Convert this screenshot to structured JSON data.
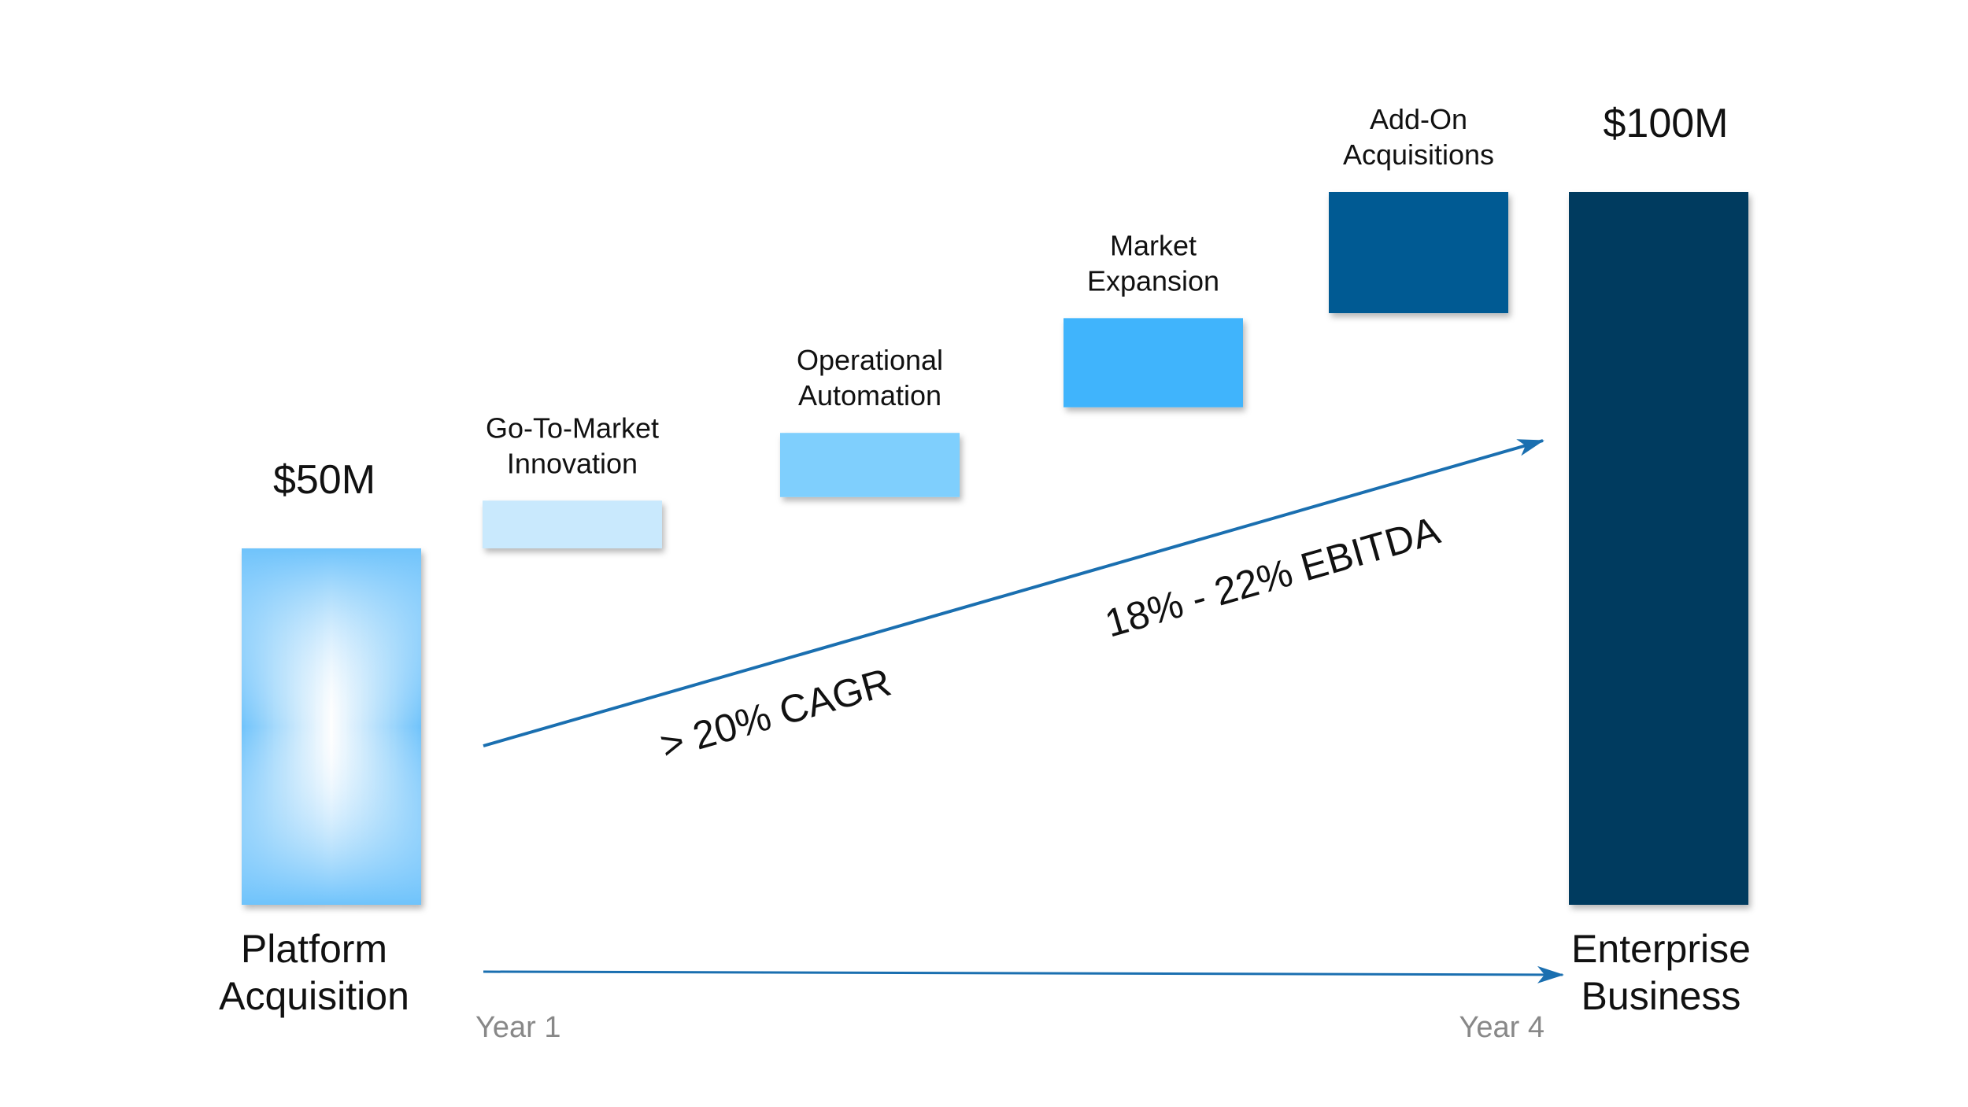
{
  "chart_data": {
    "type": "bar",
    "subtype": "waterfall",
    "title": "",
    "xlabel": "",
    "ylabel": "",
    "ylim": [
      0,
      100
    ],
    "grid": false,
    "legend": "none",
    "categories": [
      "Platform Acquisition",
      "Go-To-Market Innovation",
      "Operational Automation",
      "Market Expansion",
      "Add-On Acquisitions",
      "Enterprise Business"
    ],
    "bars": [
      {
        "label_lines": [
          "Platform",
          "Acquisition"
        ],
        "label_position": "below",
        "start": 0,
        "end": 50,
        "value_label": "$50M",
        "color": "#6fc3fb",
        "style": "gradient"
      },
      {
        "label_lines": [
          "Go-To-Market",
          "Innovation"
        ],
        "label_position": "above",
        "start": 50,
        "end": 56.7,
        "value_label": "",
        "color": "#c9e9fd",
        "style": "solid"
      },
      {
        "label_lines": [
          "Operational",
          "Automation"
        ],
        "label_position": "above",
        "start": 57.2,
        "end": 66.2,
        "value_label": "",
        "color": "#7fcffd",
        "style": "solid"
      },
      {
        "label_lines": [
          "Market",
          "Expansion"
        ],
        "label_position": "above",
        "start": 69.8,
        "end": 82.3,
        "value_label": "",
        "color": "#3fb4fc",
        "style": "solid"
      },
      {
        "label_lines": [
          "Add-On",
          "Acquisitions"
        ],
        "label_position": "above",
        "start": 83.0,
        "end": 100,
        "value_label": "",
        "color": "#005a93",
        "style": "solid"
      },
      {
        "label_lines": [
          "Enterprise",
          "Business"
        ],
        "label_position": "below",
        "start": 0,
        "end": 100,
        "value_label": "$100M",
        "color": "#003a5e",
        "style": "solid"
      }
    ],
    "timeline": {
      "start_label": "Year 1",
      "end_label": "Year 4"
    },
    "annotations": [
      {
        "text": "> 20% CAGR"
      },
      {
        "text": "18% - 22% EBITDA"
      }
    ],
    "colors": {
      "arrow": "#1a6fb0",
      "label_text": "#111111",
      "year_text": "#888888"
    }
  }
}
